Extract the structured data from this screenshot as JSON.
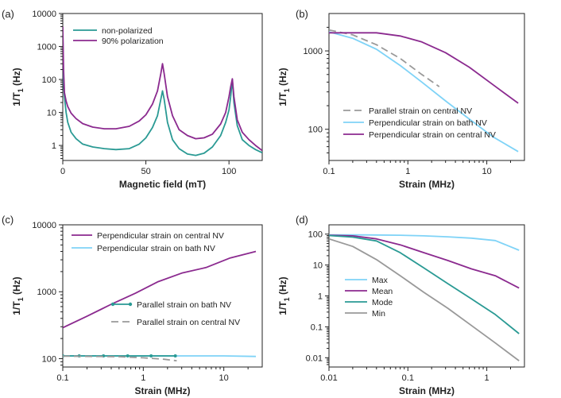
{
  "chart_data": [
    {
      "type": "line",
      "panel_label": "(a)",
      "xlabel": "Magnetic field (mT)",
      "ylabel": "1/T1 (Hz)",
      "x_scale": "linear",
      "y_scale": "log",
      "xlim": [
        0,
        120
      ],
      "ylim": [
        0.35,
        10000
      ],
      "x_ticks": [
        0,
        50,
        100
      ],
      "x_tick_labels": [
        "0",
        "50",
        "100"
      ],
      "y_ticks": [
        1,
        10,
        100,
        1000,
        10000
      ],
      "y_tick_labels": [
        "1",
        "10",
        "100",
        "1000",
        "10000"
      ],
      "legend_position": "top-left",
      "series": [
        {
          "name": "non-polarized",
          "color": "#2a9a94",
          "dash": "",
          "x": [
            0,
            0.5,
            1,
            2,
            3,
            5,
            8,
            12,
            18,
            25,
            32,
            40,
            46,
            50,
            54,
            57,
            59,
            60,
            61,
            63,
            66,
            70,
            75,
            80,
            85,
            90,
            95,
            98,
            100,
            101,
            102,
            103,
            105,
            108,
            112,
            116,
            120
          ],
          "y": [
            2500,
            80,
            30,
            10,
            5,
            2.5,
            1.6,
            1.1,
            0.9,
            0.8,
            0.75,
            0.8,
            1.1,
            1.7,
            3.5,
            8,
            25,
            45,
            25,
            5,
            1.5,
            0.8,
            0.55,
            0.5,
            0.58,
            0.9,
            2,
            5,
            12,
            30,
            100,
            20,
            4,
            1.5,
            1.0,
            0.75,
            0.6
          ]
        },
        {
          "name": "90% polarization",
          "color": "#8b2a8f",
          "dash": "",
          "x": [
            0,
            0.5,
            1,
            2,
            3,
            5,
            8,
            12,
            18,
            25,
            32,
            40,
            46,
            50,
            54,
            57,
            59,
            60,
            61,
            63,
            66,
            70,
            75,
            80,
            85,
            90,
            95,
            98,
            100,
            101,
            102,
            103,
            105,
            108,
            112,
            116,
            120
          ],
          "y": [
            4000,
            200,
            40,
            22,
            15,
            9.5,
            6.5,
            4.6,
            3.6,
            3.2,
            3.2,
            3.8,
            5.5,
            8.5,
            18,
            45,
            150,
            300,
            150,
            30,
            8,
            3,
            2,
            1.6,
            1.7,
            2.2,
            4.5,
            10,
            30,
            60,
            105,
            30,
            6,
            2.5,
            1.5,
            1.0,
            0.7
          ]
        }
      ]
    },
    {
      "type": "line",
      "panel_label": "(b)",
      "xlabel": "Strain (MHz)",
      "ylabel": "1/T1 (Hz)",
      "x_scale": "log",
      "y_scale": "log",
      "xlim": [
        0.1,
        30
      ],
      "ylim": [
        40,
        3000
      ],
      "x_ticks": [
        0.1,
        1,
        10
      ],
      "x_tick_labels": [
        "0.1",
        "1",
        "10"
      ],
      "y_ticks": [
        100,
        1000
      ],
      "y_tick_labels": [
        "100",
        "1000"
      ],
      "legend_position": "bottom-left",
      "series": [
        {
          "name": "Parallel strain on central NV",
          "color": "#999999",
          "dash": "9,5",
          "x": [
            0.1,
            0.2,
            0.4,
            0.8,
            1.5,
            2.5
          ],
          "y": [
            1850,
            1600,
            1200,
            800,
            500,
            350
          ]
        },
        {
          "name": "Perpendicular strain on bath NV",
          "color": "#7fd3f7",
          "dash": "",
          "x": [
            0.1,
            0.2,
            0.4,
            0.8,
            1.5,
            3,
            6,
            12,
            25
          ],
          "y": [
            1750,
            1450,
            1050,
            650,
            400,
            230,
            135,
            80,
            52
          ]
        },
        {
          "name": "Perpendicular strain on central NV",
          "color": "#8b2a8f",
          "dash": "",
          "x": [
            0.1,
            0.2,
            0.4,
            0.8,
            1.5,
            3,
            6,
            12,
            25
          ],
          "y": [
            1700,
            1700,
            1700,
            1550,
            1300,
            950,
            620,
            370,
            215
          ]
        }
      ]
    },
    {
      "type": "line",
      "panel_label": "(c)",
      "xlabel": "Strain (MHz)",
      "ylabel": "1/T1 (Hz)",
      "x_scale": "log",
      "y_scale": "log",
      "xlim": [
        0.1,
        30
      ],
      "ylim": [
        75,
        10000
      ],
      "x_ticks": [
        0.1,
        1,
        10
      ],
      "x_tick_labels": [
        "0.1",
        "1",
        "10"
      ],
      "y_ticks": [
        100,
        1000,
        10000
      ],
      "y_tick_labels": [
        "100",
        "1000",
        "10000"
      ],
      "legend_position": "top-left",
      "series": [
        {
          "name": "Perpendicular strain on central NV",
          "color": "#8b2a8f",
          "dash": "",
          "x": [
            0.1,
            0.2,
            0.4,
            0.8,
            1.5,
            3,
            6,
            12,
            25
          ],
          "y": [
            290,
            430,
            650,
            950,
            1400,
            1900,
            2300,
            3200,
            4000
          ]
        },
        {
          "name": "Perpendicular strain on bath NV",
          "color": "#7fd3f7",
          "dash": "",
          "x": [
            0.1,
            0.3,
            1,
            3,
            10,
            25
          ],
          "y": [
            110,
            110,
            110,
            110,
            110,
            108
          ]
        },
        {
          "name": "Parallel strain on bath NV",
          "color": "#2a9a94",
          "dash": "",
          "markers": true,
          "x": [
            0.1,
            0.16,
            0.32,
            0.64,
            1.25,
            2.5
          ],
          "y": [
            110,
            110,
            110,
            110,
            110,
            110
          ]
        },
        {
          "name": "Parallel strain on central NV",
          "color": "#999999",
          "dash": "9,5",
          "x": [
            0.1,
            0.5,
            1,
            1.8,
            2.6
          ],
          "y": [
            109,
            107,
            103,
            98,
            93
          ]
        }
      ]
    },
    {
      "type": "line",
      "panel_label": "(d)",
      "xlabel": "Strain (MHz)",
      "ylabel": "1/T1 (Hz)",
      "x_scale": "log",
      "y_scale": "log",
      "xlim": [
        0.01,
        3
      ],
      "ylim": [
        0.005,
        200
      ],
      "x_ticks": [
        0.01,
        0.1,
        1
      ],
      "x_tick_labels": [
        "0.01",
        "0.1",
        "1"
      ],
      "y_ticks": [
        0.01,
        0.1,
        1,
        10,
        100
      ],
      "y_tick_labels": [
        "0.01",
        "0.1",
        "1",
        "10",
        "100"
      ],
      "legend_position": "bottom-left",
      "series": [
        {
          "name": "Max",
          "color": "#7fd3f7",
          "dash": "",
          "x": [
            0.01,
            0.02,
            0.04,
            0.08,
            0.16,
            0.32,
            0.64,
            1.28,
            2.56
          ],
          "y": [
            95,
            95,
            94,
            92,
            88,
            82,
            74,
            62,
            30
          ]
        },
        {
          "name": "Mean",
          "color": "#8b2a8f",
          "dash": "",
          "x": [
            0.01,
            0.02,
            0.04,
            0.08,
            0.16,
            0.32,
            0.64,
            1.28,
            2.56
          ],
          "y": [
            92,
            88,
            70,
            45,
            25,
            14,
            7.5,
            4.5,
            1.8
          ]
        },
        {
          "name": "Mode",
          "color": "#2a9a94",
          "dash": "",
          "x": [
            0.01,
            0.02,
            0.04,
            0.08,
            0.16,
            0.32,
            0.64,
            1.28,
            2.56
          ],
          "y": [
            90,
            80,
            60,
            25,
            8,
            2.5,
            0.8,
            0.25,
            0.06
          ]
        },
        {
          "name": "Min",
          "color": "#999999",
          "dash": "",
          "x": [
            0.01,
            0.02,
            0.04,
            0.08,
            0.16,
            0.32,
            0.64,
            1.28,
            2.56
          ],
          "y": [
            70,
            40,
            15,
            4.5,
            1.3,
            0.4,
            0.11,
            0.03,
            0.008
          ]
        }
      ]
    }
  ]
}
